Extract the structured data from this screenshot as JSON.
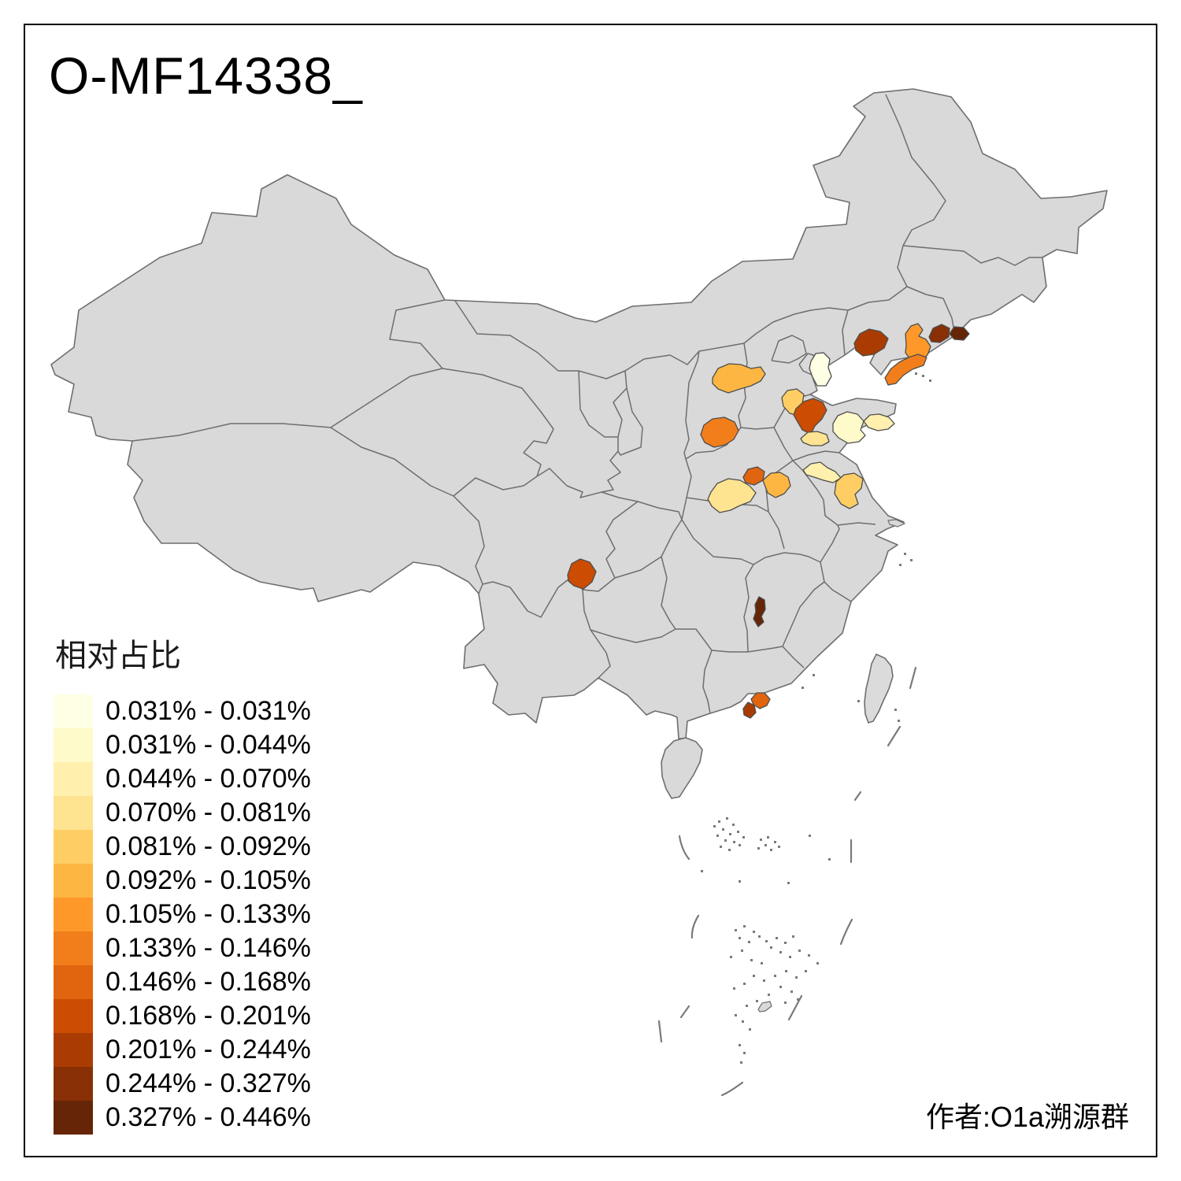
{
  "title": "O-MF14338_",
  "attribution": "作者:O1a溯源群",
  "legend": {
    "title": "相对占比",
    "classes": [
      {
        "label": "0.031% - 0.031%",
        "color": "#FFFFE5"
      },
      {
        "label": "0.031% - 0.044%",
        "color": "#FFFACA"
      },
      {
        "label": "0.044% - 0.070%",
        "color": "#FFF0AE"
      },
      {
        "label": "0.070% - 0.081%",
        "color": "#FEE391"
      },
      {
        "label": "0.081% - 0.092%",
        "color": "#FECE65"
      },
      {
        "label": "0.092% - 0.105%",
        "color": "#FEB642"
      },
      {
        "label": "0.105% - 0.133%",
        "color": "#FE9929"
      },
      {
        "label": "0.133% - 0.146%",
        "color": "#F27E1B"
      },
      {
        "label": "0.146% - 0.168%",
        "color": "#E1640E"
      },
      {
        "label": "0.168% - 0.201%",
        "color": "#CC4C02"
      },
      {
        "label": "0.201% - 0.244%",
        "color": "#AA3C03"
      },
      {
        "label": "0.244% - 0.327%",
        "color": "#882F05"
      },
      {
        "label": "0.327% - 0.446%",
        "color": "#662506"
      }
    ]
  },
  "map": {
    "land_color": "#D9D9D9",
    "taiwan_color": "#DBDBDB",
    "border_color": "#6E6E6E",
    "region_stroke_color": "#4D4D4D",
    "sea_mark_color": "#7A7A7A",
    "background_color": "#FFFFFF",
    "regions": [
      {
        "id": "west-liaoning",
        "class_index": 10
      },
      {
        "id": "liaoning-ne-a",
        "class_index": 11
      },
      {
        "id": "liaoning-ne-b",
        "class_index": 12
      },
      {
        "id": "central-liaoning",
        "class_index": 6
      },
      {
        "id": "liaodong-peninsula",
        "class_index": 7
      },
      {
        "id": "beijing-area",
        "class_index": 0
      },
      {
        "id": "hebei-northwest",
        "class_index": 4
      },
      {
        "id": "shijiazhuang-area",
        "class_index": 9
      },
      {
        "id": "shandong-west",
        "class_index": 1
      },
      {
        "id": "shandong-peninsula",
        "class_index": 2
      },
      {
        "id": "hebei-south",
        "class_index": 3
      },
      {
        "id": "henan-north",
        "class_index": 2
      },
      {
        "id": "jiangsu-northwest",
        "class_index": 4
      },
      {
        "id": "yulin-area",
        "class_index": 5
      },
      {
        "id": "yanan-area",
        "class_index": 7
      },
      {
        "id": "weinan-area",
        "class_index": 8
      },
      {
        "id": "sanmenxia-area",
        "class_index": 5
      },
      {
        "id": "xianyang-area",
        "class_index": 3
      },
      {
        "id": "sichuan-liangshan",
        "class_index": 9
      },
      {
        "id": "hunan-jiangxi-border",
        "class_index": 12
      },
      {
        "id": "guangdong-east",
        "class_index": 8
      },
      {
        "id": "guangdong-pearl",
        "class_index": 10
      }
    ]
  }
}
